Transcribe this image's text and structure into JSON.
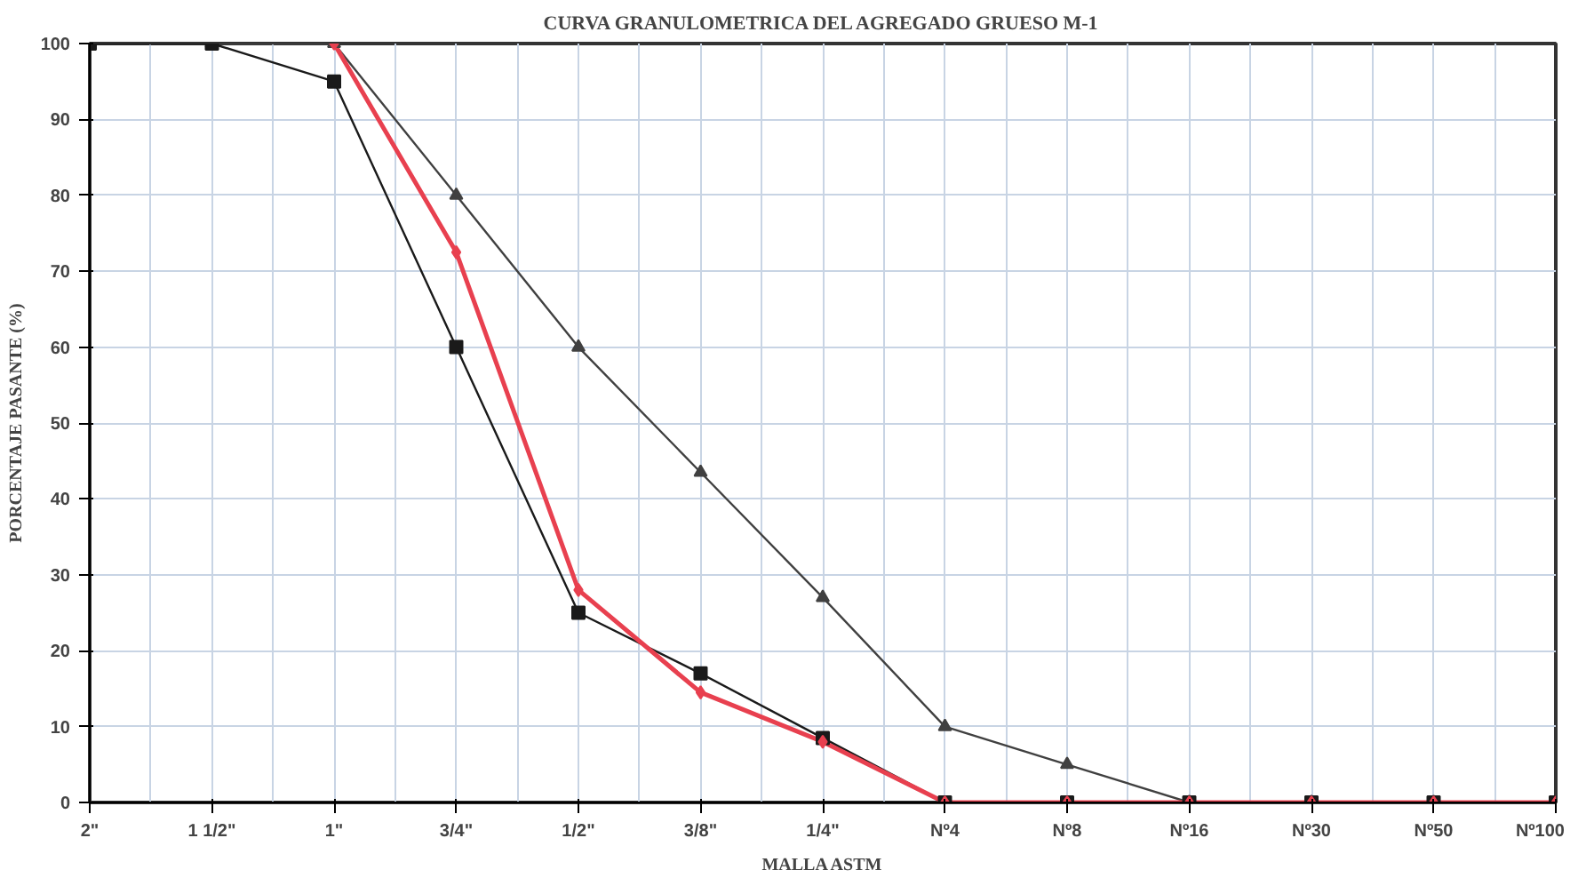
{
  "chart_data": {
    "type": "line",
    "title": "CURVA GRANULOMETRICA DEL AGREGADO GRUESO M-1",
    "xlabel": "MALLA ASTM",
    "ylabel": "PORCENTAJE PASANTE (%)",
    "categories": [
      "2\"",
      "1 1/2\"",
      "1\"",
      "3/4\"",
      "1/2\"",
      "3/8\"",
      "1/4\"",
      "Nº4",
      "Nº8",
      "Nº16",
      "Nº30",
      "Nº50",
      "Nº100"
    ],
    "series": [
      {
        "color": "#404040",
        "marker": "triangle",
        "values": [
          100,
          100,
          100,
          80,
          60,
          43.5,
          27,
          10,
          5,
          0,
          0,
          0,
          0
        ]
      },
      {
        "color": "#1a1a1a",
        "marker": "square",
        "values": [
          100,
          100,
          95,
          60,
          25,
          17,
          8.5,
          0,
          0,
          0,
          0,
          0,
          0
        ]
      },
      {
        "color": "#e8404f",
        "marker": "diamond",
        "values": [
          null,
          null,
          100,
          72.5,
          28,
          14.5,
          8,
          0,
          0,
          0,
          0,
          0,
          0
        ]
      }
    ],
    "ylim": [
      0,
      100
    ],
    "yticks": [
      0,
      10,
      20,
      30,
      40,
      50,
      60,
      70,
      80,
      90,
      100
    ],
    "grid": true
  }
}
